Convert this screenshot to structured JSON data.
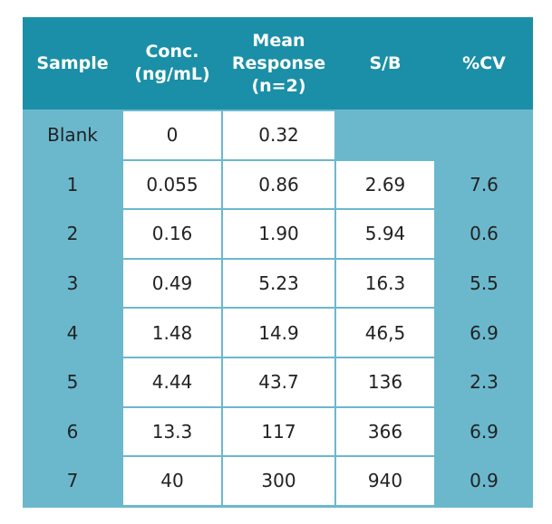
{
  "table": {
    "headers": [
      "Sample",
      "Conc.\n(ng/mL)",
      "Mean\nResponse\n(n=2)",
      "S/B",
      "%CV"
    ],
    "rows": [
      [
        "Blank",
        "0",
        "0.32",
        "",
        ""
      ],
      [
        "1",
        "0.055",
        "0.86",
        "2.69",
        "7.6"
      ],
      [
        "2",
        "0.16",
        "1.90",
        "5.94",
        "0.6"
      ],
      [
        "3",
        "0.49",
        "5.23",
        "16.3",
        "5.5"
      ],
      [
        "4",
        "1.48",
        "14.9",
        "46,5",
        "6.9"
      ],
      [
        "5",
        "4.44",
        "43.7",
        "136",
        "2.3"
      ],
      [
        "6",
        "13.3",
        "117",
        "366",
        "6.9"
      ],
      [
        "7",
        "40",
        "300",
        "940",
        "0.9"
      ]
    ]
  },
  "colors": {
    "header_bg": "#1b8fa7",
    "body_blue": "#6bb8cd",
    "body_white": "#ffffff",
    "header_text": "#ffffff",
    "body_text": "#222222"
  }
}
